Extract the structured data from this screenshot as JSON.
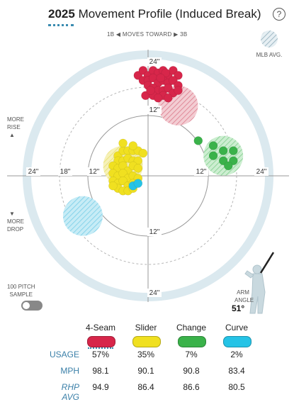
{
  "header": {
    "year": "2025",
    "title": "Movement Profile (Induced Break)",
    "help_icon": "?"
  },
  "direction": {
    "left": "1B",
    "center": "MOVES TOWARD",
    "right": "3B"
  },
  "legend": {
    "mlb_avg": "MLB AVG."
  },
  "side_labels": {
    "more_rise_1": "MORE",
    "more_rise_2": "RISE",
    "more_drop_1": "MORE",
    "more_drop_2": "DROP"
  },
  "sample": {
    "line1": "100 PITCH",
    "line2": "SAMPLE"
  },
  "arm_angle": {
    "line1": "ARM",
    "line2": "ANGLE",
    "value": "51°"
  },
  "chart_data": {
    "type": "scatter",
    "axis_ticks": {
      "top": [
        "24\"",
        "12\""
      ],
      "bottom": [
        "12\"",
        "24\""
      ],
      "left": [
        "24\"",
        "18\"",
        "12\""
      ],
      "right": [
        "12\"",
        "24\""
      ]
    },
    "series": [
      {
        "name": "4-Seam",
        "color": "#d7264a",
        "avg_color": "#e9a0ab",
        "points": [
          [
            -2,
            20
          ],
          [
            -1,
            21
          ],
          [
            0,
            20
          ],
          [
            1,
            21
          ],
          [
            2,
            20.5
          ],
          [
            3,
            21
          ],
          [
            4,
            20
          ],
          [
            5,
            21
          ],
          [
            6,
            20
          ],
          [
            -1,
            19
          ],
          [
            0,
            19
          ],
          [
            1,
            19.5
          ],
          [
            2,
            18.5
          ],
          [
            3,
            19
          ],
          [
            4,
            18.5
          ],
          [
            5,
            19
          ],
          [
            6,
            18
          ],
          [
            0,
            18
          ],
          [
            1,
            17.5
          ],
          [
            2,
            17
          ],
          [
            3,
            17
          ],
          [
            4,
            17.5
          ],
          [
            5,
            16.5
          ],
          [
            -0.5,
            16
          ],
          [
            1,
            16
          ],
          [
            3,
            16
          ],
          [
            4,
            15.5
          ],
          [
            6,
            17
          ],
          [
            2,
            15.5
          ],
          [
            0.5,
            17
          ],
          [
            3.5,
            20.5
          ],
          [
            2.5,
            19.5
          ]
        ],
        "avg": [
          6,
          14
        ]
      },
      {
        "name": "Slider",
        "color": "#f0e020",
        "avg_color": "#f4ee99",
        "points": [
          [
            -6,
            4
          ],
          [
            -5,
            5
          ],
          [
            -4,
            5
          ],
          [
            -3,
            5
          ],
          [
            -2,
            5
          ],
          [
            -1,
            4.5
          ],
          [
            -6,
            3
          ],
          [
            -5,
            3
          ],
          [
            -4,
            3.5
          ],
          [
            -3,
            3
          ],
          [
            -2,
            3
          ],
          [
            -7,
            2
          ],
          [
            -6,
            1.5
          ],
          [
            -5,
            2
          ],
          [
            -4,
            1
          ],
          [
            -3,
            2
          ],
          [
            -2,
            1.5
          ],
          [
            -7,
            0.5
          ],
          [
            -6,
            0
          ],
          [
            -5,
            0.5
          ],
          [
            -4,
            -0.5
          ],
          [
            -3,
            0
          ],
          [
            -2,
            -0.5
          ],
          [
            -7,
            -1
          ],
          [
            -6,
            -1.5
          ],
          [
            -5,
            -1
          ],
          [
            -4,
            -2
          ],
          [
            -3,
            -1.5
          ],
          [
            -6,
            -2.5
          ],
          [
            -5,
            -3
          ],
          [
            -4,
            -3
          ],
          [
            -3,
            -2.5
          ],
          [
            -5,
            6.5
          ],
          [
            -3,
            6
          ],
          [
            -7,
            -2
          ]
        ],
        "avg": [
          -5,
          2
        ]
      },
      {
        "name": "Change",
        "color": "#3ab24a",
        "avg_color": "#a9dcae",
        "points": [
          [
            10,
            7
          ],
          [
            13,
            6
          ],
          [
            15,
            5
          ],
          [
            17,
            5
          ],
          [
            13,
            4
          ],
          [
            15,
            3
          ],
          [
            17,
            3
          ],
          [
            16,
            2
          ]
        ],
        "avg": [
          15,
          4
        ]
      },
      {
        "name": "Curve",
        "color": "#25c3e6",
        "avg_color": "#a9e2f0",
        "points": [
          [
            -3,
            -2
          ],
          [
            -2,
            -1.5
          ]
        ],
        "avg": [
          -13,
          -8
        ]
      }
    ]
  },
  "table": {
    "pitches": [
      "4-Seam",
      "Slider",
      "Change",
      "Curve"
    ],
    "rows": [
      {
        "label": "USAGE",
        "values": [
          "57%",
          "35%",
          "7%",
          "2%"
        ]
      },
      {
        "label": "MPH",
        "values": [
          "98.1",
          "90.1",
          "90.8",
          "83.4"
        ]
      },
      {
        "label": "RHP AVG",
        "values": [
          "94.9",
          "86.4",
          "86.6",
          "80.5"
        ]
      }
    ]
  }
}
